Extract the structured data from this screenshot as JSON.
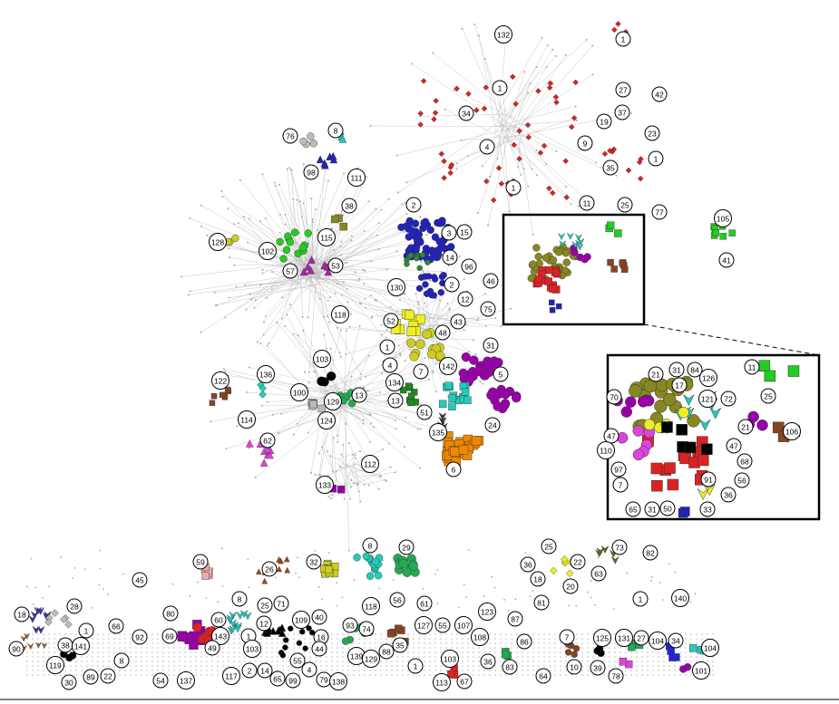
{
  "labels": [
    "1",
    "132",
    "1",
    "34",
    "4",
    "27",
    "42",
    "37",
    "23",
    "19",
    "9",
    "35",
    "1",
    "1",
    "11",
    "25",
    "77",
    "105",
    "41",
    "76",
    "8",
    "98",
    "111",
    "38",
    "2",
    "3",
    "15",
    "115",
    "128",
    "102",
    "14",
    "96",
    "57",
    "53",
    "130",
    "2",
    "46",
    "12",
    "118",
    "75",
    "52",
    "43",
    "48",
    "1",
    "31",
    "4",
    "7",
    "142",
    "5",
    "103",
    "136",
    "122",
    "100",
    "129",
    "13",
    "134",
    "13",
    "51",
    "24",
    "124",
    "114",
    "135",
    "62",
    "112",
    "6",
    "133",
    "11",
    "126",
    "25",
    "21",
    "31",
    "84",
    "17",
    "70",
    "121",
    "72",
    "21",
    "106",
    "47",
    "47",
    "110",
    "68",
    "97",
    "56",
    "91",
    "7",
    "36",
    "65",
    "31",
    "50",
    "33",
    "8",
    "29",
    "25",
    "73",
    "82",
    "59",
    "26",
    "32",
    "36",
    "22",
    "18",
    "63",
    "20",
    "45",
    "1",
    "140",
    "8",
    "56",
    "61",
    "118",
    "123",
    "81",
    "18",
    "28",
    "25",
    "71",
    "12",
    "80",
    "60",
    "109",
    "40",
    "93",
    "74",
    "127",
    "55",
    "107",
    "87",
    "1",
    "66",
    "92",
    "69",
    "143",
    "1",
    "7",
    "125",
    "131",
    "27",
    "104",
    "34",
    "104",
    "90",
    "38",
    "141",
    "49",
    "103",
    "16",
    "44",
    "139",
    "129",
    "88",
    "35",
    "103",
    "108",
    "36",
    "86",
    "8",
    "119",
    "55",
    "2",
    "14",
    "4",
    "1",
    "83",
    "10",
    "39",
    "78",
    "64",
    "101",
    "30",
    "89",
    "22",
    "54",
    "137",
    "117",
    "65",
    "99",
    "79",
    "138",
    "113",
    "67"
  ]
}
